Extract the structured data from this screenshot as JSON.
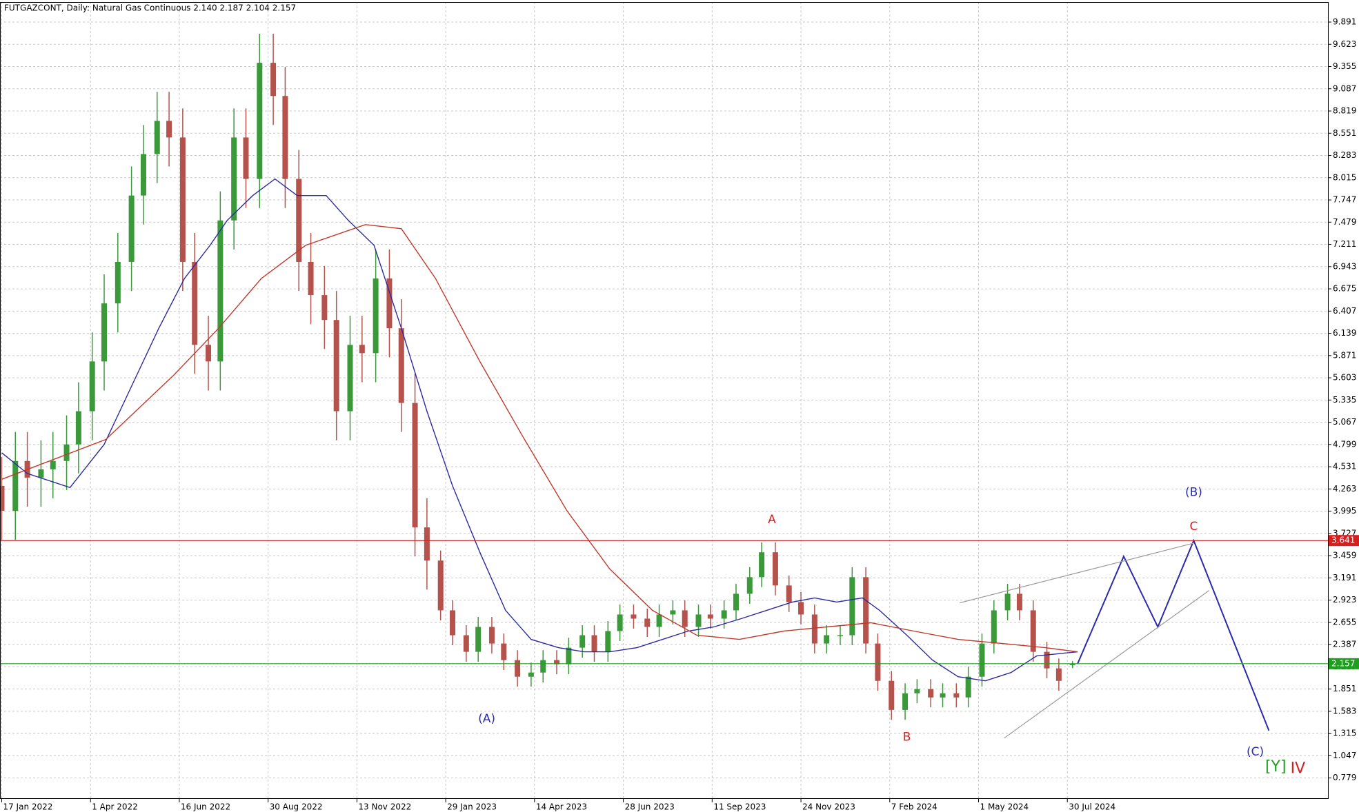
{
  "chart_data": {
    "type": "candlestick",
    "title": "FUTGAZCONT, Daily:  Natural Gas Continuous  2.140 2.187 2.104 2.157",
    "up_color": "#3a9a3a",
    "down_color": "#b5524c",
    "grid": true,
    "xlim": [
      -1,
      777
    ],
    "ylim": [
      0.527,
      10.132
    ],
    "yticks": [
      0.779,
      1.047,
      1.315,
      1.583,
      1.851,
      2.119,
      2.387,
      2.655,
      2.923,
      3.191,
      3.459,
      3.727,
      3.995,
      4.263,
      4.531,
      4.799,
      5.067,
      5.335,
      5.603,
      5.871,
      6.139,
      6.407,
      6.675,
      6.943,
      7.211,
      7.479,
      7.747,
      8.015,
      8.283,
      8.551,
      8.819,
      9.087,
      9.355,
      9.623,
      9.891
    ],
    "xticks": [
      {
        "value": 0,
        "label": "17 Jan 2022"
      },
      {
        "value": 52,
        "label": "1 Apr 2022"
      },
      {
        "value": 104,
        "label": "16 Jun 2022"
      },
      {
        "value": 156,
        "label": "30 Aug 2022"
      },
      {
        "value": 208,
        "label": "13 Nov 2022"
      },
      {
        "value": 260,
        "label": "29 Jan 2023"
      },
      {
        "value": 312,
        "label": "14 Apr 2023"
      },
      {
        "value": 364,
        "label": "28 Jun 2023"
      },
      {
        "value": 416,
        "label": "11 Sep 2023"
      },
      {
        "value": 468,
        "label": "24 Nov 2023"
      },
      {
        "value": 520,
        "label": "7 Feb 2024"
      },
      {
        "value": 572,
        "label": "1 May 2024"
      },
      {
        "value": 624,
        "label": "30 Jul 2024"
      }
    ],
    "x": [
      0,
      8,
      15,
      23,
      30,
      38,
      45,
      53,
      60,
      68,
      76,
      83,
      91,
      98,
      106,
      113,
      121,
      128,
      136,
      143,
      151,
      159,
      166,
      174,
      181,
      189,
      196,
      204,
      211,
      219,
      227,
      234,
      242,
      249,
      257,
      264,
      272,
      279,
      287,
      294,
      302,
      310,
      317,
      325,
      332,
      340,
      347,
      355,
      362,
      370,
      378,
      385,
      393,
      400,
      408,
      415,
      423,
      430,
      438,
      445,
      453,
      461,
      468,
      476,
      483,
      491,
      498,
      506,
      513,
      521,
      529,
      536,
      544,
      551,
      559,
      566,
      574,
      581,
      589,
      596,
      604,
      612,
      619,
      627
    ],
    "open": [
      4.3,
      4.0,
      4.6,
      4.4,
      4.5,
      4.6,
      4.8,
      5.2,
      5.8,
      6.5,
      7.0,
      7.8,
      8.3,
      8.7,
      8.5,
      7.0,
      6.0,
      5.8,
      7.5,
      8.5,
      8.0,
      9.4,
      9.0,
      8.0,
      7.0,
      6.6,
      6.3,
      5.2,
      6.0,
      5.9,
      6.8,
      6.2,
      5.3,
      3.8,
      3.4,
      2.8,
      2.5,
      2.3,
      2.6,
      2.4,
      2.2,
      2.0,
      2.05,
      2.2,
      2.15,
      2.35,
      2.5,
      2.3,
      2.55,
      2.75,
      2.7,
      2.6,
      2.75,
      2.8,
      2.6,
      2.75,
      2.7,
      2.8,
      3.0,
      3.2,
      3.5,
      3.1,
      2.9,
      2.75,
      2.4,
      2.5,
      2.5,
      3.2,
      2.4,
      1.95,
      1.6,
      1.8,
      1.85,
      1.75,
      1.8,
      1.75,
      2.0,
      2.4,
      2.8,
      3.0,
      2.8,
      2.3,
      2.1,
      2.14
    ],
    "high": [
      4.65,
      4.95,
      4.95,
      4.85,
      4.95,
      5.15,
      5.55,
      6.15,
      6.85,
      7.35,
      8.15,
      8.65,
      9.05,
      9.05,
      8.85,
      7.35,
      6.35,
      7.85,
      8.85,
      8.85,
      9.75,
      9.75,
      9.35,
      8.35,
      7.35,
      6.95,
      6.65,
      6.35,
      6.35,
      7.15,
      7.15,
      6.55,
      5.65,
      4.15,
      3.52,
      2.92,
      2.62,
      2.72,
      2.72,
      2.52,
      2.32,
      2.17,
      2.32,
      2.32,
      2.47,
      2.62,
      2.62,
      2.67,
      2.87,
      2.87,
      2.82,
      2.87,
      2.92,
      2.92,
      2.87,
      2.87,
      2.92,
      3.12,
      3.32,
      3.62,
      3.62,
      3.22,
      3.02,
      2.87,
      2.62,
      2.62,
      3.32,
      3.32,
      2.52,
      2.07,
      1.92,
      1.97,
      1.97,
      1.92,
      1.92,
      2.12,
      2.52,
      2.92,
      3.12,
      3.12,
      2.92,
      2.42,
      2.22,
      2.187
    ],
    "low": [
      3.65,
      3.65,
      4.05,
      4.05,
      4.15,
      4.25,
      4.45,
      4.85,
      5.45,
      6.15,
      6.65,
      7.45,
      7.95,
      8.15,
      6.65,
      5.65,
      5.45,
      5.45,
      7.15,
      7.65,
      7.65,
      8.65,
      7.65,
      6.65,
      6.25,
      5.95,
      4.85,
      4.85,
      5.55,
      5.55,
      5.85,
      4.95,
      3.45,
      3.05,
      2.68,
      2.38,
      2.18,
      2.18,
      2.28,
      2.08,
      1.88,
      1.88,
      1.93,
      2.03,
      2.03,
      2.23,
      2.18,
      2.18,
      2.43,
      2.58,
      2.48,
      2.48,
      2.63,
      2.48,
      2.48,
      2.58,
      2.58,
      2.68,
      2.88,
      3.08,
      2.98,
      2.78,
      2.63,
      2.28,
      2.28,
      2.38,
      2.38,
      2.28,
      1.83,
      1.48,
      1.48,
      1.68,
      1.63,
      1.63,
      1.63,
      1.63,
      1.88,
      2.28,
      2.68,
      2.68,
      2.18,
      1.98,
      1.83,
      2.104
    ],
    "close": [
      4.0,
      4.6,
      4.4,
      4.5,
      4.6,
      4.8,
      5.2,
      5.8,
      6.5,
      7.0,
      7.8,
      8.3,
      8.7,
      8.5,
      7.0,
      6.0,
      5.8,
      7.5,
      8.5,
      8.0,
      9.4,
      9.0,
      8.0,
      7.0,
      6.6,
      6.3,
      5.2,
      6.0,
      5.9,
      6.8,
      6.2,
      5.3,
      3.8,
      3.4,
      2.8,
      2.5,
      2.3,
      2.6,
      2.4,
      2.2,
      2.0,
      2.05,
      2.2,
      2.15,
      2.35,
      2.5,
      2.3,
      2.55,
      2.75,
      2.7,
      2.6,
      2.75,
      2.8,
      2.6,
      2.75,
      2.7,
      2.8,
      3.0,
      3.2,
      3.5,
      3.1,
      2.9,
      2.75,
      2.4,
      2.5,
      2.5,
      3.2,
      2.4,
      1.95,
      1.6,
      1.8,
      1.85,
      1.75,
      1.8,
      1.75,
      2.0,
      2.4,
      2.8,
      3.0,
      2.8,
      2.3,
      2.1,
      1.95,
      2.157
    ],
    "moving_averages": [
      {
        "color": "#2a2aa0",
        "x": [
          0,
          15,
          40,
          60,
          76,
          92,
          107,
          122,
          132,
          147,
          160,
          173,
          190,
          203,
          218,
          234,
          249,
          264,
          280,
          295,
          310,
          326,
          341,
          356,
          372,
          387,
          402,
          417,
          433,
          448,
          463,
          476,
          489,
          504,
          514,
          530,
          545,
          560,
          576,
          591,
          606,
          630
        ],
        "values": [
          4.7,
          4.45,
          4.28,
          4.8,
          5.5,
          6.2,
          6.8,
          7.2,
          7.5,
          7.8,
          8.0,
          7.8,
          7.8,
          7.5,
          7.2,
          6.2,
          5.2,
          4.3,
          3.5,
          2.8,
          2.45,
          2.35,
          2.3,
          2.3,
          2.35,
          2.45,
          2.55,
          2.6,
          2.7,
          2.8,
          2.9,
          2.95,
          2.9,
          2.95,
          2.8,
          2.5,
          2.2,
          2.0,
          1.95,
          2.05,
          2.25,
          2.3
        ]
      },
      {
        "color": "#c0392b",
        "x": [
          0,
          61,
          101,
          127,
          152,
          178,
          213,
          234,
          254,
          280,
          305,
          331,
          356,
          381,
          407,
          432,
          458,
          483,
          509,
          534,
          560,
          586,
          611,
          630
        ],
        "values": [
          4.38,
          4.86,
          5.64,
          6.2,
          6.8,
          7.2,
          7.45,
          7.4,
          6.8,
          5.8,
          4.9,
          4.0,
          3.3,
          2.8,
          2.5,
          2.45,
          2.55,
          2.6,
          2.65,
          2.55,
          2.45,
          2.4,
          2.35,
          2.3
        ]
      }
    ],
    "hlines": [
      {
        "value": 3.641,
        "color": "#d62020"
      },
      {
        "value": 2.157,
        "color": "#1f9e1f"
      }
    ],
    "trendlines": [
      {
        "color": "#2a2ab0",
        "x": [
          630,
          657,
          677,
          698,
          742
        ],
        "values": [
          2.157,
          3.45,
          2.6,
          3.641,
          1.35
        ]
      },
      {
        "color": "#999999",
        "x": [
          561,
          698
        ],
        "values": [
          2.89,
          3.61
        ]
      },
      {
        "color": "#999999",
        "x": [
          587,
          707
        ],
        "values": [
          1.26,
          3.04
        ]
      }
    ],
    "annotations": [
      {
        "text": "A",
        "x": 451,
        "y": 3.89,
        "color": "#d62020"
      },
      {
        "text": "(A)",
        "x": 284,
        "y": 1.49,
        "color": "#2a2ab0"
      },
      {
        "text": "B",
        "x": 530,
        "y": 1.27,
        "color": "#d62020"
      },
      {
        "text": "(B)",
        "x": 698,
        "y": 4.22,
        "color": "#2a2ab0"
      },
      {
        "text": "C",
        "x": 698,
        "y": 3.81,
        "color": "#d62020"
      },
      {
        "text": "(C)",
        "x": 734,
        "y": 1.09,
        "color": "#2a2ab0"
      },
      {
        "text": "[Y]",
        "x": 746,
        "y": 0.91,
        "color": "#1f9e1f"
      },
      {
        "text": "IV",
        "x": 759,
        "y": 0.89,
        "color": "#d62020"
      }
    ]
  }
}
